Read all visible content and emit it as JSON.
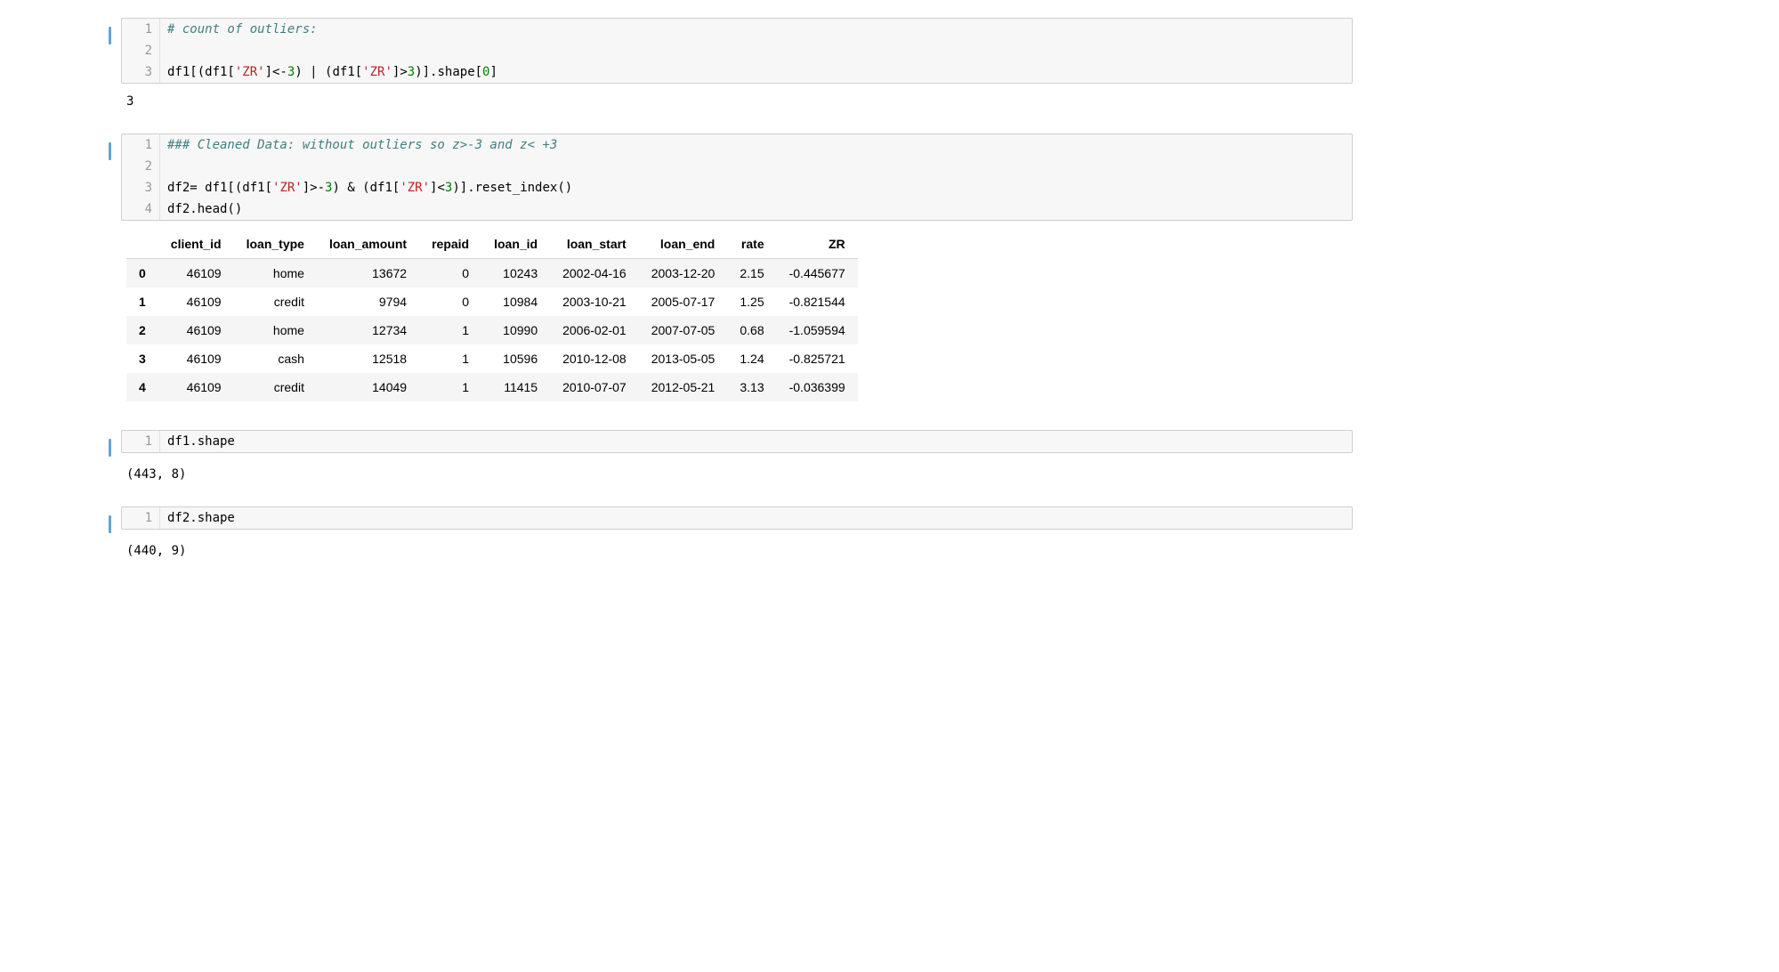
{
  "colors": {
    "page_background": "#ffffff",
    "code_background": "#f7f7f7",
    "code_border": "#cfcfcf",
    "gutter_text": "#999999",
    "gutter_border": "#e0e0e0",
    "table_header_border": "#d4d4d4",
    "table_row_odd_bg": "#f5f5f5",
    "table_row_even_bg": "#ffffff",
    "comment_color": "#408080",
    "string_color": "#ba2121",
    "number_color": "#008000",
    "text_color": "#000000",
    "prompt_bar_color": "#66a3d2"
  },
  "typography": {
    "code_font": "DejaVu Sans Mono, Menlo, Consolas, monospace",
    "ui_font": "Helvetica Neue, Helvetica, Arial, sans-serif",
    "code_fontsize_pt": 11,
    "ui_fontsize_pt": 11
  },
  "cells": {
    "c1": {
      "lines": [
        "1",
        "2",
        "3"
      ],
      "seg": {
        "l1_comment": "# count of outliers:",
        "l2": "",
        "l3_a": "df1[(df1[",
        "l3_s1": "'ZR'",
        "l3_b": "]<-",
        "l3_n1": "3",
        "l3_c": ") | (df1[",
        "l3_s2": "'ZR'",
        "l3_d": "]>",
        "l3_n2": "3",
        "l3_e": ")].shape[",
        "l3_n3": "0",
        "l3_f": "]"
      },
      "output": "3"
    },
    "c2": {
      "lines": [
        "1",
        "2",
        "3",
        "4"
      ],
      "seg": {
        "l1_comment": "### Cleaned Data: without outliers so z>-3 and z< +3",
        "l2": "",
        "l3_a": "df2= df1[(df1[",
        "l3_s1": "'ZR'",
        "l3_b": "]>-",
        "l3_n1": "3",
        "l3_c": ") & (df1[",
        "l3_s2": "'ZR'",
        "l3_d": "]<",
        "l3_n2": "3",
        "l3_e": ")].reset_index()",
        "l4": "df2.head()"
      }
    },
    "c3": {
      "lines": [
        "1"
      ],
      "seg": {
        "l1": "df1.shape"
      },
      "output": "(443, 8)"
    },
    "c4": {
      "lines": [
        "1"
      ],
      "seg": {
        "l1": "df2.shape"
      },
      "output": "(440, 9)"
    }
  },
  "dataframe": {
    "type": "table",
    "corner": "",
    "columns": [
      "client_id",
      "loan_type",
      "loan_amount",
      "repaid",
      "loan_id",
      "loan_start",
      "loan_end",
      "rate",
      "ZR"
    ],
    "index": [
      "0",
      "1",
      "2",
      "3",
      "4"
    ],
    "rows": [
      [
        "46109",
        "home",
        "13672",
        "0",
        "10243",
        "2002-04-16",
        "2003-12-20",
        "2.15",
        "-0.445677"
      ],
      [
        "46109",
        "credit",
        "9794",
        "0",
        "10984",
        "2003-10-21",
        "2005-07-17",
        "1.25",
        "-0.821544"
      ],
      [
        "46109",
        "home",
        "12734",
        "1",
        "10990",
        "2006-02-01",
        "2007-07-05",
        "0.68",
        "-1.059594"
      ],
      [
        "46109",
        "cash",
        "12518",
        "1",
        "10596",
        "2010-12-08",
        "2013-05-05",
        "1.24",
        "-0.825721"
      ],
      [
        "46109",
        "credit",
        "14049",
        "1",
        "11415",
        "2010-07-07",
        "2012-05-21",
        "3.13",
        "-0.036399"
      ]
    ]
  }
}
